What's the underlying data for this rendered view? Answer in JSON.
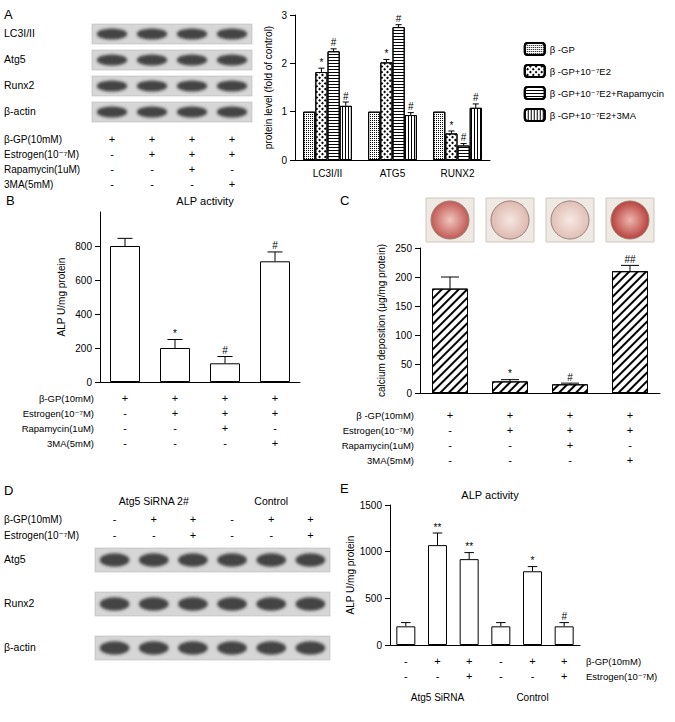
{
  "chart_data": [
    {
      "type": "bar",
      "y_label": "protein level (fold of control)",
      "categories": [
        "LC3I/II",
        "ATG5",
        "RUNX2"
      ],
      "ylim": [
        0,
        3
      ],
      "yticks": [
        0,
        1,
        2,
        3
      ],
      "grid": false,
      "legend": "right",
      "series": [
        {
          "name": "β -GP",
          "color": "#ffffff",
          "values": [
            1,
            1,
            1
          ],
          "errors": [
            0,
            0,
            0
          ],
          "significance": [
            null,
            null,
            null
          ]
        },
        {
          "name": "β -GP+10⁻⁷E2",
          "color": "#ffffff",
          "values": [
            1.82,
            2.02,
            0.55
          ],
          "errors": [
            0.08,
            0.06,
            0.05
          ],
          "significance": [
            "*",
            "*",
            "*"
          ]
        },
        {
          "name": "β -GP+10⁻⁷E2+Rapamycin",
          "color": "#ffffff",
          "values": [
            2.25,
            2.75,
            0.3
          ],
          "errors": [
            0.05,
            0.05,
            0.04
          ],
          "significance": [
            "#",
            "#",
            "#"
          ]
        },
        {
          "name": "β -GP+10⁻⁷E2+3MA",
          "color": "#ffffff",
          "values": [
            1.12,
            0.93,
            1.08
          ],
          "errors": [
            0.08,
            0.05,
            0.08
          ],
          "significance": [
            "#",
            "#",
            "#"
          ]
        }
      ]
    },
    {
      "panel": "B",
      "type": "bar",
      "title": "ALP activity",
      "y_label": "ALP U/mg protein",
      "categories": [
        null,
        null,
        null,
        null
      ],
      "tick_labels": "y",
      "ylim": [
        0,
        1000
      ],
      "yticks": [
        0,
        200,
        400,
        600,
        800
      ],
      "grid": false,
      "color": "#ffffff",
      "values": [
        800,
        200,
        110,
        710
      ],
      "errors": [
        45,
        50,
        40,
        55
      ],
      "significance": [
        null,
        "*",
        "#",
        "#"
      ],
      "conditions": [
        {
          "label": "β-GP(10mM)",
          "marks": [
            "+",
            "+",
            "+",
            "+"
          ]
        },
        {
          "label": "Estrogen(10⁻⁷M)",
          "marks": [
            "-",
            "+",
            "+",
            "+"
          ]
        },
        {
          "label": "Rapamycin(1uM)",
          "marks": [
            "-",
            "-",
            "+",
            "-"
          ]
        },
        {
          "label": "3MA(5mM)",
          "marks": [
            "-",
            "-",
            "-",
            "+"
          ]
        }
      ]
    },
    {
      "panel": "C",
      "type": "bar",
      "y_label": "calcium deposition (μg/mg protein)",
      "categories": [
        null,
        null,
        null,
        null
      ],
      "tick_labels": "y",
      "ylim": [
        0,
        250
      ],
      "yticks": [
        0,
        50,
        100,
        150,
        200,
        250
      ],
      "grid": false,
      "color": "#ffffff",
      "values": [
        180,
        20,
        15,
        210
      ],
      "errors": [
        20,
        3,
        2,
        10
      ],
      "significance": [
        null,
        "*",
        "#",
        "##"
      ],
      "conditions": [
        {
          "label": "β -GP(10mM)",
          "marks": [
            "+",
            "+",
            "+",
            "+"
          ]
        },
        {
          "label": "Estrogen(10⁻⁷M)",
          "marks": [
            "-",
            "+",
            "+",
            "+"
          ]
        },
        {
          "label": "Rapamycin(1uM)",
          "marks": [
            "-",
            "-",
            "+",
            "-"
          ]
        },
        {
          "label": "3MA(5mM)",
          "marks": [
            "-",
            "-",
            "-",
            "+"
          ]
        }
      ]
    },
    {
      "panel": "E",
      "type": "bar",
      "title": "ALP activity",
      "y_label": "ALP U/mg protein",
      "categories": [
        null,
        null,
        null,
        null,
        null,
        null
      ],
      "tick_labels": "y",
      "ylim": [
        0,
        1500
      ],
      "yticks": [
        0,
        500,
        1000,
        1500
      ],
      "grid": false,
      "color": "#ffffff",
      "values": [
        200,
        1070,
        920,
        200,
        790,
        200
      ],
      "errors": [
        40,
        130,
        70,
        40,
        50,
        40
      ],
      "significance": [
        null,
        "**",
        "**",
        null,
        "*",
        "#"
      ],
      "conditions": [
        {
          "label": "β-GP(10mM)",
          "marks": [
            "-",
            "+",
            "+",
            "-",
            "+",
            "+"
          ]
        },
        {
          "label": "Estrogen(10⁻⁷M)",
          "marks": [
            "-",
            "-",
            "+",
            "-",
            "-",
            "+"
          ]
        }
      ],
      "groups": [
        {
          "name": "Atg5 SiRNA",
          "count": 3
        },
        {
          "name": "Control",
          "count": 3
        }
      ]
    }
  ],
  "blots": [
    {
      "panel": "A",
      "bands": [
        "LC3I/II",
        "Atg5",
        "Runx2",
        "β-actin"
      ],
      "conditions": [
        {
          "label": "β-GP(10mM)",
          "marks": [
            "+",
            "+",
            "+",
            "+"
          ]
        },
        {
          "label": "Estrogen(10⁻⁷M)",
          "marks": [
            "-",
            "+",
            "+",
            "+"
          ]
        },
        {
          "label": "Rapamycin(1uM)",
          "marks": [
            "-",
            "-",
            "+",
            "-"
          ]
        },
        {
          "label": "3MA(5mM)",
          "marks": [
            "-",
            "-",
            "-",
            "+"
          ]
        }
      ]
    },
    {
      "panel": "D",
      "bands": [
        "Atg5",
        "Runx2",
        "β-actin"
      ],
      "groups": [
        {
          "name": "Atg5 SiRNA 2#",
          "count": 3
        },
        {
          "name": "Control",
          "count": 3
        }
      ],
      "conditions": [
        {
          "label": "β-GP(10mM)",
          "marks": [
            "-",
            "+",
            "+",
            "-",
            "+",
            "+"
          ]
        },
        {
          "label": "Estrogen(10⁻⁷M)",
          "marks": [
            "-",
            "-",
            "+",
            "-",
            "-",
            "+"
          ]
        }
      ]
    }
  ]
}
